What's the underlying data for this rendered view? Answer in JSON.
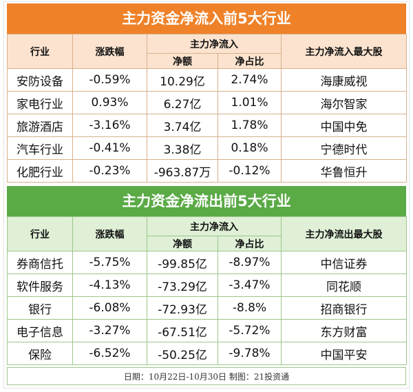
{
  "inflow": {
    "title": "主力资金净流入前5大行业",
    "headers": {
      "industry": "行业",
      "change": "涨跌幅",
      "net_group": "主力净流入",
      "net": "净额",
      "ratio": "净占比",
      "top_stock": "主力净流入最大股"
    },
    "rows": [
      {
        "industry": "安防设备",
        "change": "-0.59%",
        "net": "10.29亿",
        "ratio": "2.74%",
        "stock": "海康威视"
      },
      {
        "industry": "家电行业",
        "change": "0.93%",
        "net": "6.27亿",
        "ratio": "1.01%",
        "stock": "海尔智家"
      },
      {
        "industry": "旅游酒店",
        "change": "-3.16%",
        "net": "3.74亿",
        "ratio": "1.78%",
        "stock": "中国中免"
      },
      {
        "industry": "汽车行业",
        "change": "-0.41%",
        "net": "3.38亿",
        "ratio": "0.18%",
        "stock": "宁德时代"
      },
      {
        "industry": "化肥行业",
        "change": "-0.23%",
        "net": "-963.87万",
        "ratio": "-0.12%",
        "stock": "华鲁恒升"
      }
    ]
  },
  "outflow": {
    "title": "主力资金净流出前5大行业",
    "headers": {
      "industry": "行业",
      "change": "涨跌幅",
      "net_group": "主力净流入",
      "net": "净额",
      "ratio": "净占比",
      "top_stock": "主力净流出最大股"
    },
    "rows": [
      {
        "industry": "券商信托",
        "change": "-5.75%",
        "net": "-99.85亿",
        "ratio": "-8.97%",
        "stock": "中信证券"
      },
      {
        "industry": "软件服务",
        "change": "-4.13%",
        "net": "-73.29亿",
        "ratio": "-3.47%",
        "stock": "同花顺"
      },
      {
        "industry": "银行",
        "change": "-6.08%",
        "net": "-72.93亿",
        "ratio": "-8.8%",
        "stock": "招商银行"
      },
      {
        "industry": "电子信息",
        "change": "-3.27%",
        "net": "-67.51亿",
        "ratio": "-5.72%",
        "stock": "东方财富"
      },
      {
        "industry": "保险",
        "change": "-6.52%",
        "net": "-50.25亿",
        "ratio": "-9.78%",
        "stock": "中国平安"
      }
    ]
  },
  "footer": "日期：10月22日-10月30日 制图：21投资通",
  "colors": {
    "inflow_accent": "#ef8229",
    "outflow_accent": "#5aaa46"
  }
}
